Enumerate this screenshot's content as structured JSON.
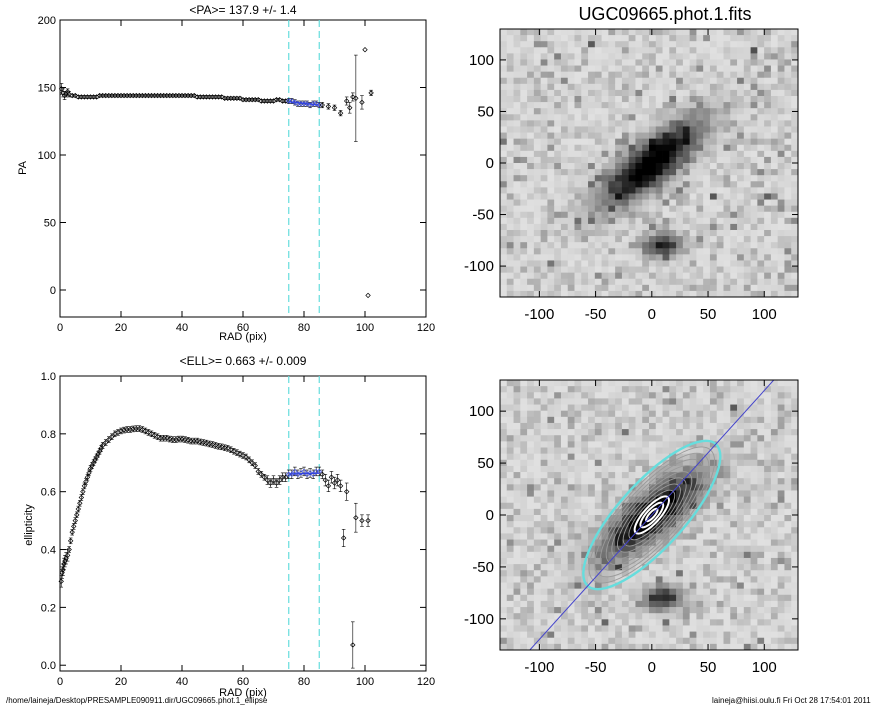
{
  "footer": {
    "path": "/home/laineja/Desktop/PRESAMPLE090911.dir/UGC09665.phot.1_ellipse",
    "stamp": "laineja@hiisi.oulu.fi  Fri Oct 28 17:54:01 2011"
  },
  "chart_data": [
    {
      "type": "scatter",
      "title": "<PA>= 137.9 +/-   1.4",
      "xlabel": "RAD (pix)",
      "ylabel": "PA",
      "xlim": [
        0,
        120
      ],
      "ylim": [
        -20,
        200
      ],
      "xticks": [
        0,
        20,
        40,
        60,
        80,
        100,
        120
      ],
      "yticks": [
        0,
        50,
        100,
        150,
        200
      ],
      "vlines": [
        75,
        85
      ],
      "fit": {
        "x": [
          75,
          85
        ],
        "y": [
          139.5,
          137.0
        ]
      },
      "points": [
        [
          0.5,
          149,
          4
        ],
        [
          1,
          146,
          3
        ],
        [
          1.5,
          144,
          3
        ],
        [
          2,
          145,
          2
        ],
        [
          2.5,
          147,
          2
        ],
        [
          3,
          145,
          2
        ],
        [
          4,
          144,
          1
        ],
        [
          5,
          144,
          1
        ],
        [
          6,
          143,
          1
        ],
        [
          7,
          143,
          1
        ],
        [
          8,
          143,
          1
        ],
        [
          9,
          143,
          1
        ],
        [
          10,
          143,
          1
        ],
        [
          11,
          143,
          1
        ],
        [
          12,
          143,
          1
        ],
        [
          13,
          144,
          1
        ],
        [
          14,
          144,
          1
        ],
        [
          15,
          144,
          1
        ],
        [
          16,
          144,
          1
        ],
        [
          17,
          144,
          1
        ],
        [
          18,
          144,
          1
        ],
        [
          19,
          144,
          1
        ],
        [
          20,
          144,
          1
        ],
        [
          21,
          144,
          1
        ],
        [
          22,
          144,
          1
        ],
        [
          23,
          144,
          1
        ],
        [
          24,
          144,
          1
        ],
        [
          25,
          144,
          1
        ],
        [
          26,
          144,
          1
        ],
        [
          27,
          144,
          1
        ],
        [
          28,
          144,
          1
        ],
        [
          29,
          144,
          1
        ],
        [
          30,
          144,
          1
        ],
        [
          31,
          144,
          1
        ],
        [
          32,
          144,
          1
        ],
        [
          33,
          144,
          1
        ],
        [
          34,
          144,
          1
        ],
        [
          35,
          144,
          1
        ],
        [
          36,
          144,
          1
        ],
        [
          37,
          144,
          1
        ],
        [
          38,
          144,
          1
        ],
        [
          39,
          144,
          1
        ],
        [
          40,
          144,
          1
        ],
        [
          41,
          144,
          1
        ],
        [
          42,
          144,
          1
        ],
        [
          43,
          144,
          1
        ],
        [
          44,
          144,
          1
        ],
        [
          45,
          143,
          1
        ],
        [
          46,
          143,
          1
        ],
        [
          47,
          143,
          1
        ],
        [
          48,
          143,
          1
        ],
        [
          49,
          143,
          1
        ],
        [
          50,
          143,
          1
        ],
        [
          51,
          143,
          1
        ],
        [
          52,
          143,
          1
        ],
        [
          53,
          143,
          1
        ],
        [
          54,
          142,
          1
        ],
        [
          55,
          142,
          1
        ],
        [
          56,
          142,
          1
        ],
        [
          57,
          142,
          1
        ],
        [
          58,
          142,
          1
        ],
        [
          59,
          142,
          1
        ],
        [
          60,
          141,
          1
        ],
        [
          61,
          141,
          1
        ],
        [
          62,
          141,
          1
        ],
        [
          63,
          141,
          1
        ],
        [
          64,
          141,
          1
        ],
        [
          65,
          141,
          1
        ],
        [
          66,
          140,
          1
        ],
        [
          67,
          140,
          1
        ],
        [
          68,
          140,
          1
        ],
        [
          69,
          140,
          1
        ],
        [
          70,
          140,
          1
        ],
        [
          71,
          141,
          1
        ],
        [
          72,
          141,
          1
        ],
        [
          73,
          140,
          1
        ],
        [
          74,
          140,
          1
        ],
        [
          75,
          140,
          2
        ],
        [
          76,
          140,
          2
        ],
        [
          77,
          139,
          2
        ],
        [
          78,
          138,
          2
        ],
        [
          79,
          138,
          2
        ],
        [
          80,
          138,
          2
        ],
        [
          81,
          138,
          2
        ],
        [
          82,
          137,
          2
        ],
        [
          83,
          138,
          2
        ],
        [
          84,
          138,
          2
        ],
        [
          85,
          137,
          2
        ],
        [
          86,
          137,
          2
        ],
        [
          88,
          136,
          2
        ],
        [
          90,
          135,
          2
        ],
        [
          92,
          131,
          2
        ],
        [
          94,
          140,
          3
        ],
        [
          95,
          135,
          4
        ],
        [
          96,
          143,
          3
        ],
        [
          97,
          142,
          32
        ],
        [
          99,
          139,
          5
        ],
        [
          100,
          178,
          0
        ],
        [
          101,
          -4,
          0
        ],
        [
          102,
          146,
          2
        ]
      ]
    },
    {
      "type": "scatter",
      "title": "<ELL>= 0.663 +/-  0.009",
      "xlabel": "RAD (pix)",
      "ylabel": "ellipticity",
      "xlim": [
        0,
        120
      ],
      "ylim": [
        -0.02,
        1.0
      ],
      "xticks": [
        0,
        20,
        40,
        60,
        80,
        100,
        120
      ],
      "yticks": [
        0.0,
        0.2,
        0.4,
        0.6,
        0.8,
        1.0
      ],
      "ytick_labels": [
        "0.0",
        "0.2",
        "0.4",
        "0.6",
        "0.8",
        "1.0"
      ],
      "vlines": [
        75,
        85
      ],
      "fit": {
        "x": [
          75,
          85
        ],
        "y": [
          0.661,
          0.664
        ]
      },
      "points": [
        [
          0.4,
          0.29,
          0.02
        ],
        [
          0.7,
          0.32,
          0.02
        ],
        [
          1,
          0.33,
          0.02
        ],
        [
          1.3,
          0.35,
          0.02
        ],
        [
          1.6,
          0.36,
          0.02
        ],
        [
          2,
          0.37,
          0.02
        ],
        [
          2.5,
          0.38,
          0.02
        ],
        [
          3,
          0.4,
          0.01
        ],
        [
          3.5,
          0.43,
          0.01
        ],
        [
          4,
          0.46,
          0.01
        ],
        [
          4.5,
          0.48,
          0.01
        ],
        [
          5,
          0.5,
          0.01
        ],
        [
          5.5,
          0.52,
          0.01
        ],
        [
          6,
          0.54,
          0.01
        ],
        [
          6.5,
          0.56,
          0.01
        ],
        [
          7,
          0.58,
          0.01
        ],
        [
          7.5,
          0.6,
          0.01
        ],
        [
          8,
          0.62,
          0.01
        ],
        [
          8.5,
          0.635,
          0.01
        ],
        [
          9,
          0.65,
          0.01
        ],
        [
          9.5,
          0.665,
          0.01
        ],
        [
          10,
          0.68,
          0.01
        ],
        [
          10.5,
          0.69,
          0.01
        ],
        [
          11,
          0.7,
          0.01
        ],
        [
          11.5,
          0.71,
          0.01
        ],
        [
          12,
          0.72,
          0.01
        ],
        [
          12.5,
          0.73,
          0.01
        ],
        [
          13,
          0.74,
          0.01
        ],
        [
          13.5,
          0.75,
          0.01
        ],
        [
          14,
          0.76,
          0.01
        ],
        [
          15,
          0.77,
          0.01
        ],
        [
          16,
          0.78,
          0.01
        ],
        [
          17,
          0.79,
          0.01
        ],
        [
          18,
          0.8,
          0.01
        ],
        [
          19,
          0.805,
          0.01
        ],
        [
          20,
          0.81,
          0.01
        ],
        [
          21,
          0.813,
          0.01
        ],
        [
          22,
          0.815,
          0.01
        ],
        [
          23,
          0.815,
          0.01
        ],
        [
          24,
          0.817,
          0.01
        ],
        [
          25,
          0.818,
          0.01
        ],
        [
          26,
          0.818,
          0.01
        ],
        [
          27,
          0.815,
          0.01
        ],
        [
          28,
          0.81,
          0.01
        ],
        [
          29,
          0.805,
          0.01
        ],
        [
          30,
          0.8,
          0.01
        ],
        [
          31,
          0.795,
          0.01
        ],
        [
          32,
          0.79,
          0.01
        ],
        [
          33,
          0.785,
          0.01
        ],
        [
          34,
          0.785,
          0.01
        ],
        [
          35,
          0.785,
          0.01
        ],
        [
          36,
          0.782,
          0.01
        ],
        [
          37,
          0.78,
          0.01
        ],
        [
          38,
          0.78,
          0.01
        ],
        [
          39,
          0.782,
          0.01
        ],
        [
          40,
          0.782,
          0.01
        ],
        [
          41,
          0.78,
          0.01
        ],
        [
          42,
          0.778,
          0.01
        ],
        [
          43,
          0.775,
          0.01
        ],
        [
          44,
          0.775,
          0.01
        ],
        [
          45,
          0.775,
          0.01
        ],
        [
          46,
          0.772,
          0.01
        ],
        [
          47,
          0.77,
          0.01
        ],
        [
          48,
          0.768,
          0.01
        ],
        [
          49,
          0.765,
          0.01
        ],
        [
          50,
          0.763,
          0.01
        ],
        [
          51,
          0.76,
          0.01
        ],
        [
          52,
          0.757,
          0.01
        ],
        [
          53,
          0.755,
          0.01
        ],
        [
          54,
          0.752,
          0.01
        ],
        [
          55,
          0.75,
          0.01
        ],
        [
          56,
          0.745,
          0.01
        ],
        [
          57,
          0.74,
          0.01
        ],
        [
          58,
          0.735,
          0.01
        ],
        [
          59,
          0.73,
          0.01
        ],
        [
          60,
          0.725,
          0.01
        ],
        [
          61,
          0.72,
          0.01
        ],
        [
          62,
          0.71,
          0.01
        ],
        [
          63,
          0.7,
          0.01
        ],
        [
          64,
          0.69,
          0.01
        ],
        [
          65,
          0.67,
          0.01
        ],
        [
          66,
          0.66,
          0.01
        ],
        [
          67,
          0.65,
          0.01
        ],
        [
          68,
          0.64,
          0.015
        ],
        [
          69,
          0.63,
          0.015
        ],
        [
          70,
          0.64,
          0.015
        ],
        [
          71,
          0.63,
          0.015
        ],
        [
          72,
          0.64,
          0.015
        ],
        [
          73,
          0.65,
          0.015
        ],
        [
          74,
          0.65,
          0.015
        ],
        [
          75,
          0.66,
          0.015
        ],
        [
          76,
          0.66,
          0.015
        ],
        [
          77,
          0.67,
          0.015
        ],
        [
          78,
          0.66,
          0.015
        ],
        [
          79,
          0.665,
          0.015
        ],
        [
          80,
          0.67,
          0.015
        ],
        [
          81,
          0.66,
          0.015
        ],
        [
          82,
          0.665,
          0.015
        ],
        [
          83,
          0.66,
          0.015
        ],
        [
          84,
          0.67,
          0.015
        ],
        [
          85,
          0.67,
          0.015
        ],
        [
          86,
          0.66,
          0.015
        ],
        [
          87,
          0.64,
          0.02
        ],
        [
          88,
          0.62,
          0.02
        ],
        [
          89,
          0.65,
          0.02
        ],
        [
          90,
          0.63,
          0.02
        ],
        [
          91,
          0.64,
          0.02
        ],
        [
          92,
          0.62,
          0.02
        ],
        [
          93,
          0.44,
          0.03
        ],
        [
          94,
          0.6,
          0.03
        ],
        [
          96,
          0.07,
          0.08
        ],
        [
          97,
          0.51,
          0.05
        ],
        [
          99,
          0.5,
          0.02
        ],
        [
          101,
          0.5,
          0.02
        ]
      ]
    },
    {
      "type": "heatmap",
      "title": "UGC09665.phot.1.fits",
      "xlim": [
        -135,
        130
      ],
      "ylim": [
        -130,
        130
      ],
      "xticks": [
        -100,
        -50,
        0,
        50,
        100
      ],
      "yticks": [
        -100,
        -50,
        0,
        50,
        100
      ],
      "colormap": "inverted grayscale",
      "sources": [
        {
          "x": 0,
          "y": 0,
          "major": 60,
          "minor": 20,
          "pa_deg": 42,
          "peak": 0.95
        },
        {
          "x": 10,
          "y": -80,
          "major": 18,
          "minor": 12,
          "pa_deg": 0,
          "peak": 0.7
        }
      ]
    },
    {
      "type": "heatmap",
      "xlim": [
        -135,
        130
      ],
      "ylim": [
        -130,
        130
      ],
      "xticks": [
        -100,
        -50,
        0,
        50,
        100
      ],
      "yticks": [
        -100,
        -50,
        0,
        50,
        100
      ],
      "colormap": "inverted grayscale",
      "contours": "gray isophote ellipses",
      "fitted_ellipse": {
        "x": 0,
        "y": 0,
        "semi_major": 85,
        "semi_minor": 29,
        "pa_deg": 47.9,
        "color": "#66dddd"
      },
      "major_axis_line": {
        "angle_deg": 47.9,
        "color": "#4444cc"
      }
    }
  ],
  "colors": {
    "points": "#000000",
    "fit": "#3344dd",
    "vline": "#66dddd",
    "ellipse": "#66dddd",
    "axis_line": "#4444cc"
  }
}
